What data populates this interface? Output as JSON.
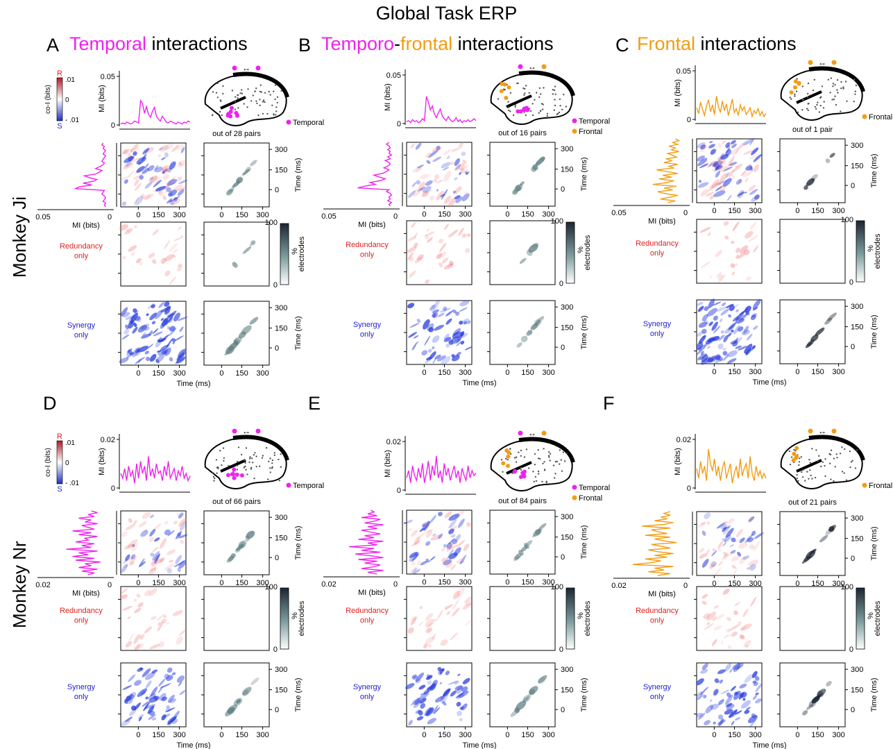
{
  "figure": {
    "title": "Global Task ERP",
    "row_labels": [
      "Monkey Ji",
      "Monkey Nr"
    ],
    "colors": {
      "temporal": "#ee22ee",
      "frontal": "#f39c12",
      "redundancy": "#e02020",
      "synergy": "#2020d0",
      "heat_dark": "#1c2633"
    }
  },
  "panels": [
    {
      "letter": "A",
      "title_parts": [
        {
          "text": "Temporal",
          "c": "mag"
        },
        {
          "text": " interactions",
          "c": ""
        }
      ]
    },
    {
      "letter": "B",
      "title_parts": [
        {
          "text": "Temporo",
          "c": "mag"
        },
        {
          "text": "-",
          "c": ""
        },
        {
          "text": "frontal",
          "c": "org"
        },
        {
          "text": " interactions",
          "c": ""
        }
      ]
    },
    {
      "letter": "C",
      "title_parts": [
        {
          "text": "Frontal",
          "c": "org"
        },
        {
          "text": " interactions",
          "c": ""
        }
      ]
    },
    {
      "letter": "D",
      "title_parts": []
    },
    {
      "letter": "E",
      "title_parts": []
    },
    {
      "letter": "F",
      "title_parts": []
    }
  ],
  "labels": {
    "coi_axis": "co-I (bits)",
    "coi_r": "R",
    "coi_s": "S",
    "coi_ticks_ji": [
      ".01",
      "0",
      "- .01"
    ],
    "coi_ticks_nr": [
      ".01",
      "0",
      "- .01"
    ],
    "mi_axis": "MI (bits)",
    "time_axis": "Time (ms)",
    "electrodes_axis": "electrodes",
    "pct": "%",
    "electrodes_ticks": [
      "100",
      "0"
    ],
    "redundancy": [
      "Redundancy",
      "only"
    ],
    "synergy": [
      "Synergy",
      "only"
    ],
    "arrow": "↔",
    "temporal_legend": "Temporal",
    "frontal_legend": "Frontal"
  },
  "pairs": [
    "out of 28 pairs",
    "out of 16 pairs",
    "out of 1 pair",
    "out of 66 pairs",
    "out of 84 pairs",
    "out of 21 pairs"
  ],
  "chart_data": [
    {
      "panel": "A",
      "type": "line",
      "ylabel": "MI (bits)",
      "ylim": [
        0,
        0.05
      ],
      "yticks": [
        "0.05",
        "0"
      ],
      "xticks": [
        "0",
        "150",
        "300"
      ],
      "series": [
        {
          "color": "temporal",
          "values": [
            0.001,
            0.002,
            0.001,
            0.003,
            0.002,
            0.001,
            0.002,
            0.004,
            0.003,
            0.002,
            0.025,
            0.022,
            0.012,
            0.019,
            0.011,
            0.008,
            0.014,
            0.018,
            0.009,
            0.006,
            0.004,
            0.009,
            0.006,
            0.003,
            0.002,
            0.004,
            0.003,
            0.002,
            0.001,
            0.003,
            0.002,
            0.001,
            0.003,
            0.002,
            0.004,
            0.003
          ]
        }
      ]
    },
    {
      "panel": "B",
      "type": "line",
      "ylabel": "MI (bits)",
      "ylim": [
        0,
        0.05
      ],
      "yticks": [
        "0.05",
        "0"
      ],
      "xticks": [
        "0",
        "150",
        "300"
      ],
      "series": [
        {
          "color": "temporal",
          "values": [
            0.002,
            0.003,
            0.001,
            0.004,
            0.002,
            0.003,
            0.001,
            0.002,
            0.005,
            0.003,
            0.028,
            0.022,
            0.014,
            0.018,
            0.01,
            0.006,
            0.011,
            0.015,
            0.008,
            0.005,
            0.003,
            0.007,
            0.004,
            0.002,
            0.003,
            0.006,
            0.002,
            0.004,
            0.001,
            0.003,
            0.002,
            0.004,
            0.002,
            0.003,
            0.005,
            0.003
          ]
        }
      ]
    },
    {
      "panel": "C",
      "type": "line",
      "ylabel": "MI (bits)",
      "ylim": [
        0,
        0.05
      ],
      "yticks": [
        "0.05",
        "0"
      ],
      "xticks": [
        "0",
        "150",
        "300"
      ],
      "series": [
        {
          "color": "frontal",
          "values": [
            0.012,
            0.006,
            0.018,
            0.01,
            0.004,
            0.014,
            0.02,
            0.008,
            0.015,
            0.005,
            0.024,
            0.013,
            0.007,
            0.019,
            0.009,
            0.016,
            0.004,
            0.012,
            0.021,
            0.007,
            0.011,
            0.004,
            0.015,
            0.009,
            0.013,
            0.005,
            0.008,
            0.012,
            0.003,
            0.009,
            0.006,
            0.011,
            0.004,
            0.008,
            0.003,
            0.006
          ]
        }
      ]
    },
    {
      "panel": "D",
      "type": "line",
      "ylabel": "MI (bits)",
      "ylim": [
        0,
        0.02
      ],
      "yticks": [
        "0.02",
        "0"
      ],
      "xticks": [
        "0",
        "150",
        "300"
      ],
      "series": [
        {
          "color": "temporal",
          "values": [
            0.006,
            0.004,
            0.008,
            0.003,
            0.009,
            0.005,
            0.007,
            0.002,
            0.01,
            0.004,
            0.011,
            0.006,
            0.009,
            0.003,
            0.013,
            0.005,
            0.008,
            0.004,
            0.01,
            0.006,
            0.007,
            0.003,
            0.009,
            0.005,
            0.011,
            0.004,
            0.006,
            0.008,
            0.003,
            0.007,
            0.005,
            0.009,
            0.004,
            0.006,
            0.003,
            0.005
          ]
        }
      ]
    },
    {
      "panel": "E",
      "type": "line",
      "ylabel": "MI (bits)",
      "ylim": [
        0,
        0.02
      ],
      "yticks": [
        "0.02",
        "0"
      ],
      "xticks": [
        "0",
        "150",
        "300"
      ],
      "series": [
        {
          "color": "temporal",
          "values": [
            0.005,
            0.008,
            0.003,
            0.01,
            0.006,
            0.004,
            0.009,
            0.005,
            0.011,
            0.003,
            0.007,
            0.012,
            0.004,
            0.01,
            0.006,
            0.014,
            0.005,
            0.008,
            0.003,
            0.011,
            0.006,
            0.009,
            0.004,
            0.007,
            0.01,
            0.005,
            0.008,
            0.003,
            0.009,
            0.006,
            0.004,
            0.01,
            0.005,
            0.008,
            0.006,
            0.007
          ]
        }
      ]
    },
    {
      "panel": "F",
      "type": "line",
      "ylabel": "MI (bits)",
      "ylim": [
        0,
        0.02
      ],
      "yticks": [
        "0.02",
        "0"
      ],
      "xticks": [
        "0",
        "150",
        "300"
      ],
      "series": [
        {
          "color": "frontal",
          "values": [
            0.008,
            0.004,
            0.011,
            0.006,
            0.009,
            0.003,
            0.016,
            0.01,
            0.007,
            0.012,
            0.005,
            0.009,
            0.003,
            0.008,
            0.011,
            0.004,
            0.007,
            0.01,
            0.002,
            0.006,
            0.009,
            0.004,
            0.012,
            0.005,
            0.008,
            0.01,
            0.004,
            0.013,
            0.006,
            0.003,
            0.009,
            0.005,
            0.007,
            0.004,
            0.006,
            0.004
          ]
        }
      ]
    }
  ],
  "heatmaps": {
    "time_ticks": [
      "0",
      "150",
      "300"
    ],
    "mi_x_ticks_ji": [
      "0.05",
      "0"
    ],
    "mi_x_ticks_nr": [
      "0.02",
      "0"
    ]
  }
}
